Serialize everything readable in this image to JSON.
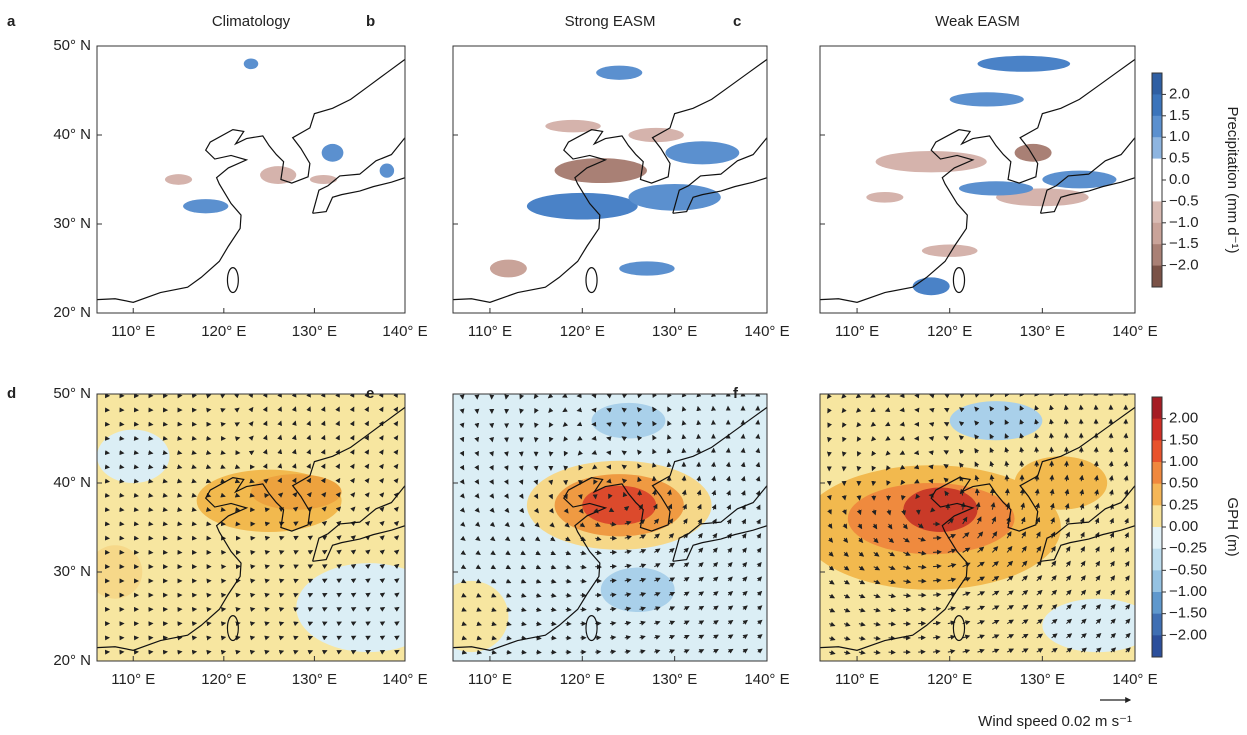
{
  "panels": [
    {
      "letter": "a",
      "title": "Climatology"
    },
    {
      "letter": "b",
      "title": "Strong EASM"
    },
    {
      "letter": "c",
      "title": "Weak EASM"
    },
    {
      "letter": "d"
    },
    {
      "letter": "e"
    },
    {
      "letter": "f"
    }
  ],
  "lat_labels": [
    "50° N",
    "40° N",
    "30° N",
    "20° N"
  ],
  "lon_labels": [
    "110° E",
    "120° E",
    "130° E",
    "140° E"
  ],
  "colorbars": [
    {
      "label": "Precipitation (mm d⁻¹)",
      "ticks": [
        "2.0",
        "1.5",
        "1.0",
        "0.5",
        "0.0",
        "−0.5",
        "−1.0",
        "−1.5",
        "−2.0"
      ]
    },
    {
      "label": "GPH (m)",
      "ticks": [
        "2.00",
        "1.50",
        "1.00",
        "0.50",
        "0.25",
        "0.00",
        "−0.25",
        "−0.50",
        "−1.00",
        "−1.50",
        "−2.00"
      ]
    }
  ],
  "wind_key": "Wind speed 0.02 m s⁻¹"
}
